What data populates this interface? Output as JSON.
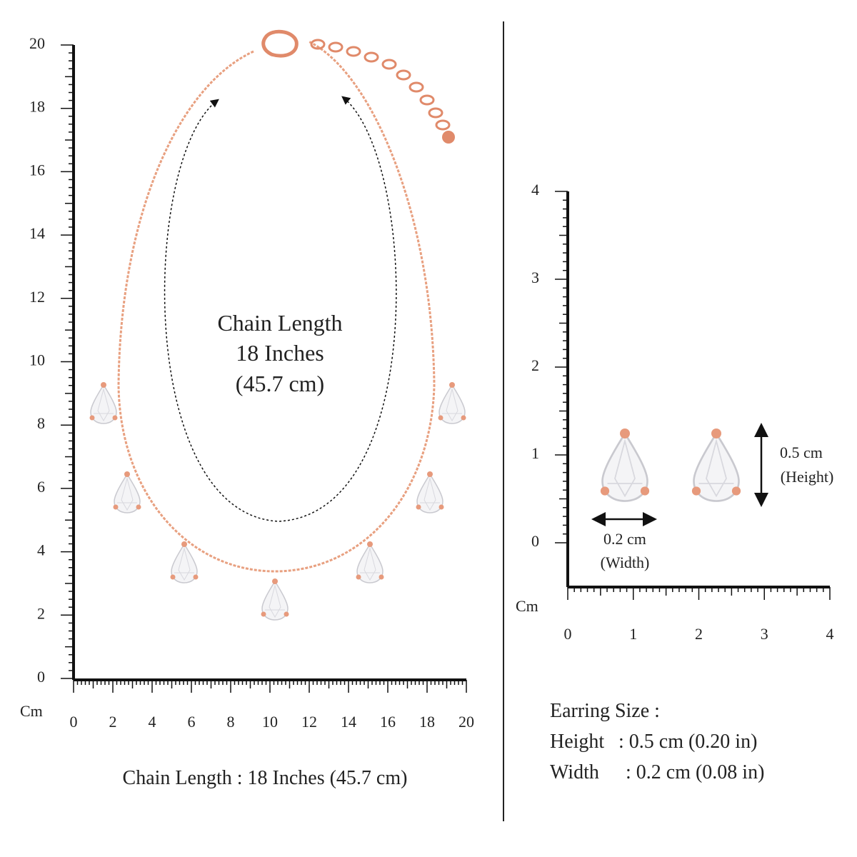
{
  "necklace": {
    "ruler": {
      "unit": "Cm",
      "y_labels": [
        0,
        2,
        4,
        6,
        8,
        10,
        12,
        14,
        16,
        18,
        20
      ],
      "x_labels": [
        0,
        2,
        4,
        6,
        8,
        10,
        12,
        14,
        16,
        18,
        20
      ]
    },
    "overlay": [
      "Chain Length",
      "18 Inches",
      "(45.7 cm)"
    ],
    "caption": "Chain Length : 18 Inches (45.7 cm)"
  },
  "earring": {
    "ruler": {
      "unit": "Cm",
      "y_labels": [
        0,
        1,
        2,
        3,
        4
      ],
      "x_labels": [
        0,
        1,
        2,
        3,
        4
      ]
    },
    "width_label": [
      "0.2 cm",
      "(Width)"
    ],
    "height_label": [
      "0.5 cm",
      "(Height)"
    ],
    "size": {
      "title": "Earring Size :",
      "rows": [
        [
          "Height",
          ": 0.5 cm (0.20 in)"
        ],
        [
          "Width",
          ": 0.2 cm (0.08 in)"
        ]
      ]
    }
  }
}
